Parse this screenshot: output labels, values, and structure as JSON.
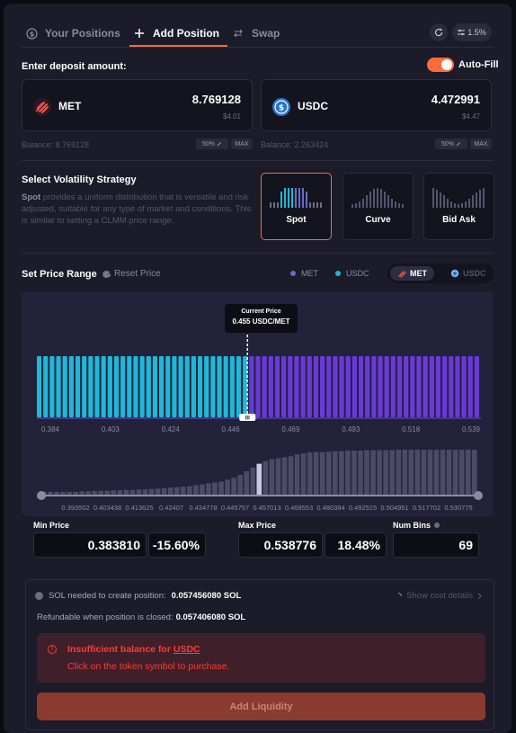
{
  "tabs": [
    {
      "label": "Your Positions",
      "icon": "dollar-circle-icon"
    },
    {
      "label": "Add Position",
      "icon": "plus-icon"
    },
    {
      "label": "Swap",
      "icon": "swap-arrows-icon"
    }
  ],
  "header": {
    "slippage": "1.5%"
  },
  "deposit": {
    "title": "Enter deposit amount:",
    "autofill_label": "Auto-Fill",
    "autofill_on": true,
    "token_a": {
      "symbol": "MET",
      "amount": "8.769128",
      "usd": "$4.01",
      "balance": "Balance: 8.769128"
    },
    "token_b": {
      "symbol": "USDC",
      "amount": "4.472991",
      "usd": "$4.47",
      "balance": "Balance: 2.263424"
    },
    "half_label": "50%",
    "max_label": "MAX"
  },
  "strategy": {
    "title": "Select Volatility Strategy",
    "desc_bold": "Spot",
    "desc_rest": " provides a uniform distribution that is versatile and risk adjusted, suitable for any type of market and conditions. This is similar to setting a CLMM price range.",
    "options": [
      "Spot",
      "Curve",
      "Bid Ask"
    ],
    "selected": "Spot"
  },
  "price_range": {
    "title": "Set Price Range",
    "reset_label": "Reset Price",
    "legend": [
      {
        "name": "MET",
        "color": "#6a6ac8"
      },
      {
        "name": "USDC",
        "color": "#1fb8d8"
      }
    ],
    "toggle": {
      "selected": "MET",
      "other": "USDC"
    },
    "current_price_title": "Current Price",
    "current_price_value": "0.455 USDC/MET",
    "handle_label": "III"
  },
  "chart_data": [
    {
      "type": "bar",
      "title": "",
      "x_ticks": [
        "0.384",
        "0.403",
        "0.424",
        "0.446",
        "0.469",
        "0.493",
        "0.518",
        "0.539"
      ],
      "series": [
        {
          "name": "USDC",
          "color": "#1fb8d8",
          "bins": 33,
          "relative_height": 1.0
        },
        {
          "name": "MET",
          "color": "#6a3ad8",
          "bins": 36,
          "relative_height": 1.0
        }
      ],
      "num_bins": 69,
      "current_price": 0.455
    },
    {
      "type": "bar",
      "title": "",
      "x_ticks": [
        "0.393502",
        "0.403438",
        "0.413625",
        "0.42407",
        "0.434778",
        "0.445757",
        "0.457013",
        "0.468553",
        "0.480384",
        "0.492515",
        "0.504951",
        "0.517702",
        "0.530775"
      ],
      "values": [
        0.08,
        0.08,
        0.08,
        0.08,
        0.08,
        0.08,
        0.09,
        0.09,
        0.1,
        0.1,
        0.1,
        0.11,
        0.11,
        0.12,
        0.12,
        0.13,
        0.13,
        0.14,
        0.15,
        0.16,
        0.17,
        0.18,
        0.19,
        0.2,
        0.22,
        0.24,
        0.26,
        0.28,
        0.3,
        0.34,
        0.38,
        0.44,
        0.52,
        0.6,
        0.68,
        0.74,
        0.78,
        0.8,
        0.82,
        0.84,
        0.88,
        0.9,
        0.92,
        0.93,
        0.93,
        0.94,
        0.95,
        0.95,
        0.96,
        0.96,
        0.96,
        0.97,
        0.97,
        0.97,
        0.97,
        0.97,
        0.98,
        0.98,
        0.98,
        0.98,
        0.98,
        0.98,
        0.98,
        0.98,
        0.98,
        0.98,
        0.98,
        0.98,
        0.98
      ],
      "highlight_index": 34,
      "range": [
        0.38381,
        0.538776
      ]
    }
  ],
  "min_price": {
    "label": "Min Price",
    "value": "0.383810",
    "pct": "-15.60%"
  },
  "max_price": {
    "label": "Max Price",
    "value": "0.538776",
    "pct": "18.48%"
  },
  "num_bins": {
    "label": "Num Bins",
    "value": "69"
  },
  "cost": {
    "sol_needed_label": "SOL needed to create position:",
    "sol_needed_value": "0.057456080 SOL",
    "refund_label": "Refundable when position is closed:",
    "refund_value": "0.057406080 SOL",
    "show_details": "Show cost details"
  },
  "warning": {
    "line1_prefix": "Insufficient balance for ",
    "line1_token": "USDC",
    "line2": "Click on the token symbol to purchase."
  },
  "action": {
    "add_liquidity": "Add Liquidity"
  }
}
